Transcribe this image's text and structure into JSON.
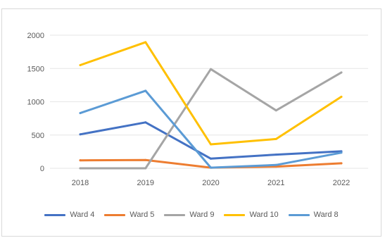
{
  "colors": {
    "background": "#ffffff",
    "frame_border": "#d9d9d9",
    "gridline": "#e6e6e6",
    "tick_text": "#595959"
  },
  "chart_data": {
    "type": "line",
    "title": "",
    "xlabel": "",
    "ylabel": "",
    "categories": [
      "2018",
      "2019",
      "2020",
      "2021",
      "2022"
    ],
    "ylim": [
      0,
      2000
    ],
    "yticks": [
      "0",
      "500",
      "1000",
      "1500",
      "2000"
    ],
    "grid": "horizontal",
    "legend_position": "bottom",
    "series": [
      {
        "name": "Ward 4",
        "color": "#4472c4",
        "values": [
          510,
          690,
          145,
          205,
          255
        ]
      },
      {
        "name": "Ward 5",
        "color": "#ed7d31",
        "values": [
          120,
          125,
          10,
          25,
          75
        ]
      },
      {
        "name": "Ward 9",
        "color": "#a5a5a5",
        "values": [
          0,
          0,
          1490,
          870,
          1440
        ]
      },
      {
        "name": "Ward 10",
        "color": "#ffc000",
        "values": [
          1550,
          1895,
          360,
          440,
          1075
        ]
      },
      {
        "name": "Ward 8",
        "color": "#5b9bd5",
        "values": [
          830,
          1165,
          10,
          50,
          235
        ]
      }
    ]
  }
}
